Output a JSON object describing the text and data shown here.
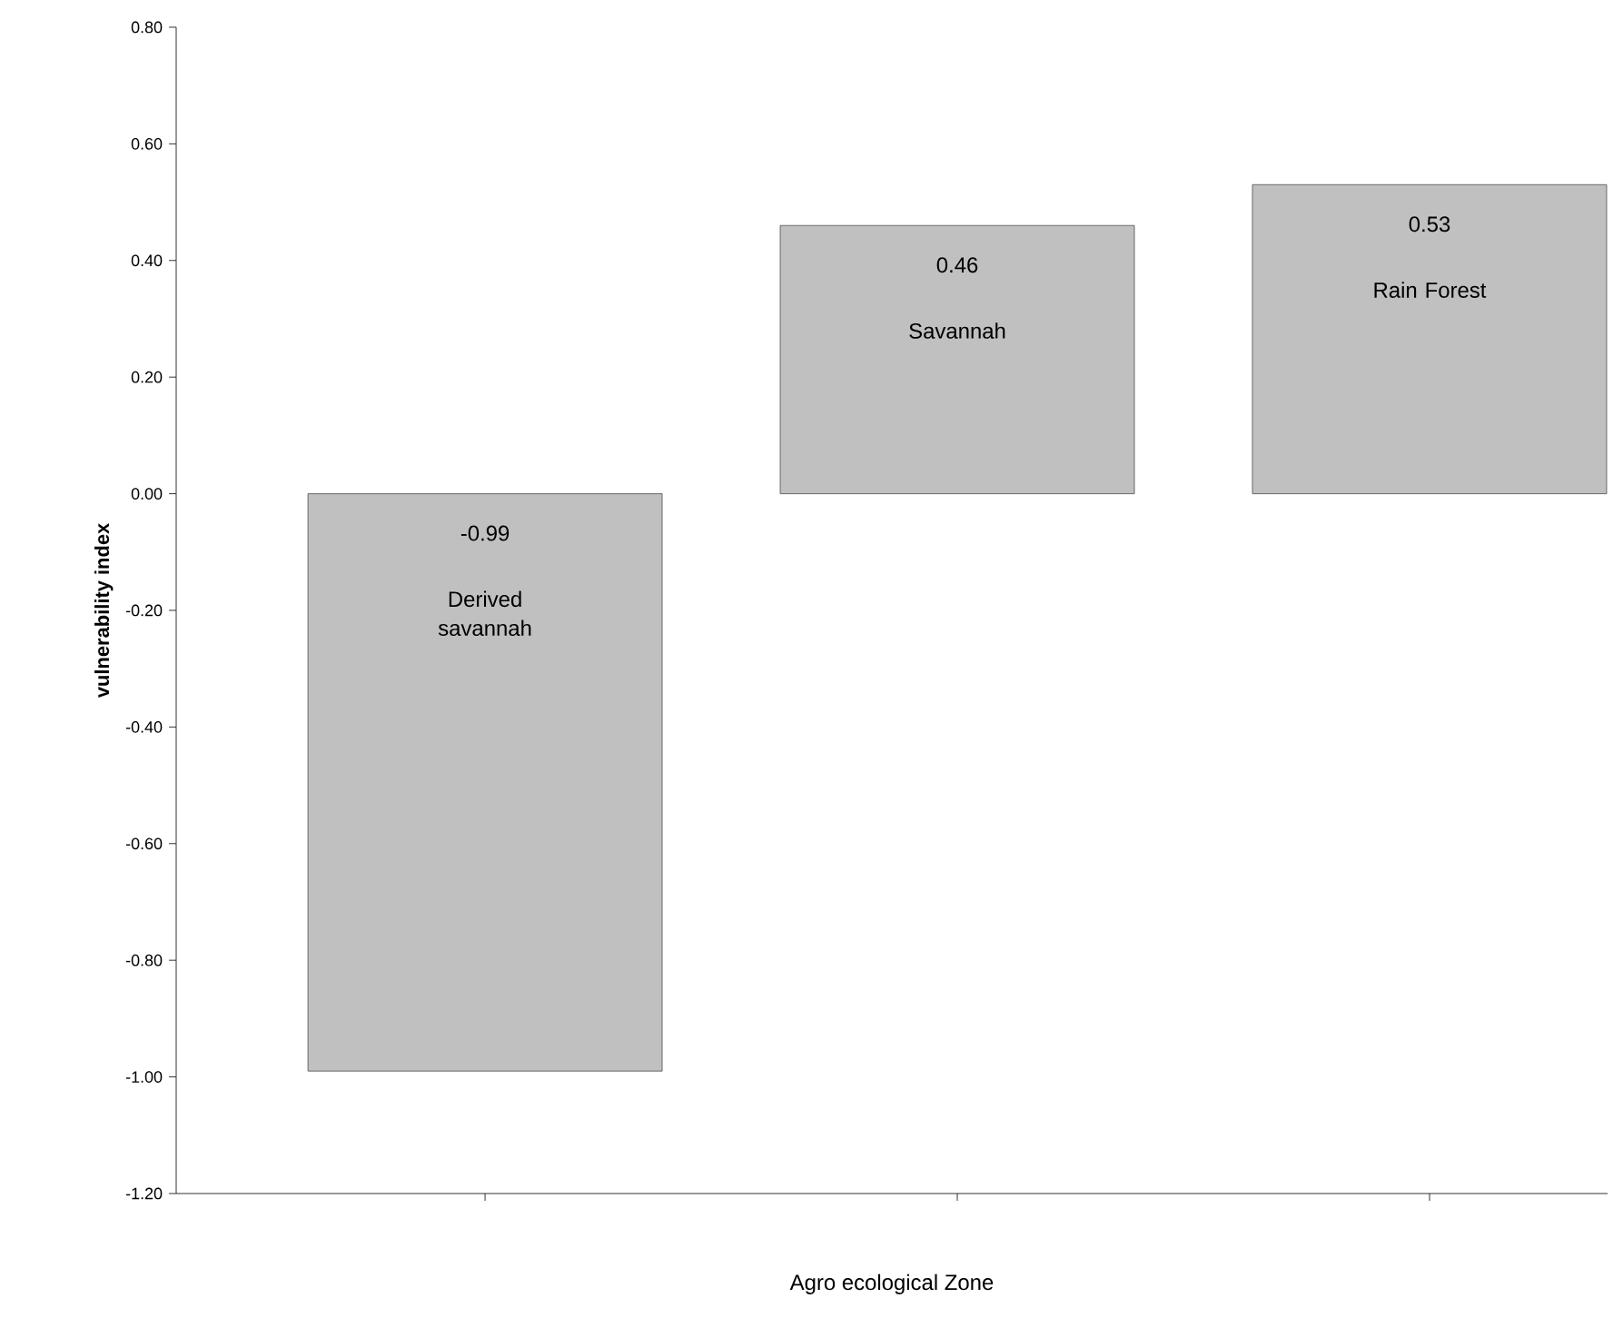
{
  "chart_data": {
    "type": "bar",
    "xlabel": "Agro ecological Zone",
    "ylabel": "vulnerability index",
    "categories": [
      "Derived savannah",
      "Savannah",
      "Rain Forest"
    ],
    "values": [
      -0.99,
      0.46,
      0.53
    ],
    "color": "#c0c0c0",
    "data_labels": true,
    "ylim": [
      -1.2,
      0.8
    ],
    "yticks": [
      {
        "value": -1.2,
        "label": "-1.20"
      },
      {
        "value": -1.0,
        "label": "-1.00"
      },
      {
        "value": -0.8,
        "label": "-0.80"
      },
      {
        "value": -0.6,
        "label": "-0.60"
      },
      {
        "value": -0.4,
        "label": "-0.40"
      },
      {
        "value": -0.2,
        "label": "-0.20"
      },
      {
        "value": 0.0,
        "label": "0.00"
      },
      {
        "value": 0.2,
        "label": "0.20"
      },
      {
        "value": 0.4,
        "label": "0.40"
      },
      {
        "value": 0.6,
        "label": "0.60"
      },
      {
        "value": 0.8,
        "label": "0.80"
      }
    ],
    "grid": false
  }
}
